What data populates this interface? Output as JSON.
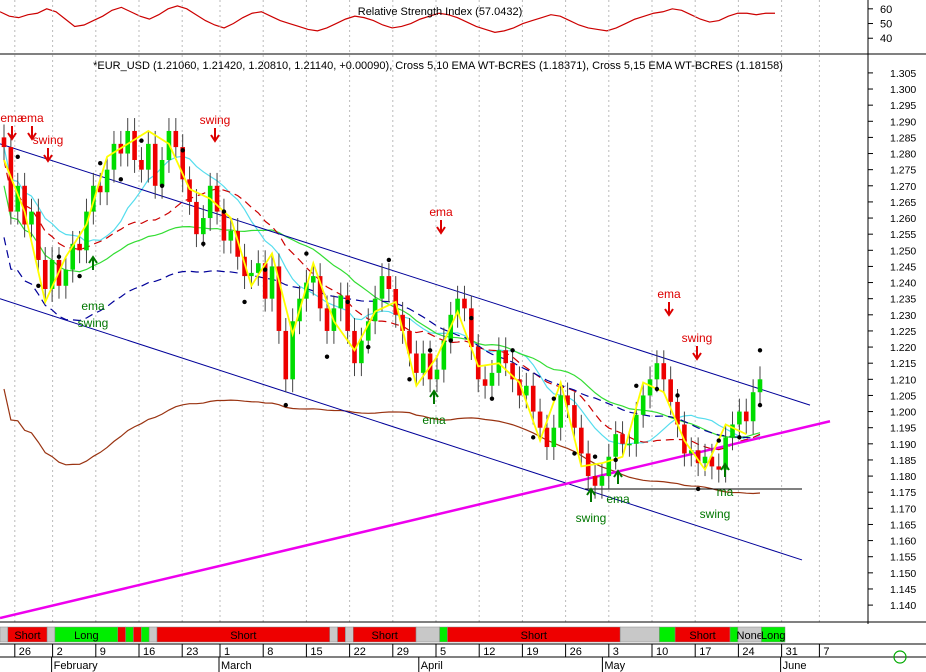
{
  "rsi": {
    "title": "Relative Strength Index (57.0432)",
    "ticks": [
      60,
      50,
      40
    ],
    "ylim": [
      32,
      66
    ],
    "values": [
      58,
      55,
      54,
      56,
      57,
      60,
      58,
      53,
      48,
      49,
      52,
      55,
      59,
      61,
      58,
      55,
      53,
      56,
      60,
      62,
      60,
      56,
      52,
      49,
      47,
      50,
      54,
      57,
      58,
      55,
      52,
      50,
      48,
      46,
      45,
      47,
      50,
      53,
      55,
      54,
      52,
      49,
      47,
      48,
      50,
      53,
      55,
      57,
      56,
      54,
      51,
      48,
      46,
      44,
      45,
      47,
      50,
      52,
      54,
      56,
      55,
      52,
      49,
      47,
      46,
      45,
      47,
      50,
      53,
      55,
      57,
      58,
      60,
      59,
      56,
      53,
      51,
      52,
      55,
      57,
      57,
      56,
      57,
      57
    ]
  },
  "main": {
    "title": "*EUR_USD (1.21060, 1.21420, 1.20810, 1.21140, +0.00090), Cross 5,10 EMA WT-BCRES (1.18371), Cross 5,15 EMA WT-BCRES (1.18158)",
    "y_ticks": [
      1.305,
      1.3,
      1.295,
      1.29,
      1.285,
      1.28,
      1.275,
      1.27,
      1.265,
      1.26,
      1.255,
      1.25,
      1.245,
      1.24,
      1.235,
      1.23,
      1.225,
      1.22,
      1.215,
      1.21,
      1.205,
      1.2,
      1.195,
      1.19,
      1.185,
      1.18,
      1.175,
      1.17,
      1.165,
      1.16,
      1.155,
      1.15,
      1.145,
      1.14
    ],
    "ylim": [
      1.136,
      1.309
    ]
  },
  "x_axis": {
    "day_labels": [
      {
        "label": "26",
        "i": 2
      },
      {
        "label": "2",
        "i": 9
      },
      {
        "label": "9",
        "i": 17
      },
      {
        "label": "16",
        "i": 25
      },
      {
        "label": "23",
        "i": 33
      },
      {
        "label": "1",
        "i": 40
      },
      {
        "label": "8",
        "i": 48
      },
      {
        "label": "15",
        "i": 56
      },
      {
        "label": "22",
        "i": 64
      },
      {
        "label": "29",
        "i": 72
      },
      {
        "label": "5",
        "i": 80
      },
      {
        "label": "12",
        "i": 88
      },
      {
        "label": "19",
        "i": 96
      },
      {
        "label": "26",
        "i": 104
      },
      {
        "label": "3",
        "i": 112
      },
      {
        "label": "10",
        "i": 120
      },
      {
        "label": "17",
        "i": 128
      },
      {
        "label": "24",
        "i": 136
      },
      {
        "label": "31",
        "i": 144
      },
      {
        "label": "7",
        "i": 151
      }
    ],
    "month_labels": [
      {
        "label": "February",
        "i": 9
      },
      {
        "label": "March",
        "i": 40
      },
      {
        "label": "April",
        "i": 77
      },
      {
        "label": "May",
        "i": 111
      },
      {
        "label": "June",
        "i": 144
      }
    ]
  },
  "signal_bar": [
    {
      "label": "",
      "state": "none",
      "from": 0,
      "to": 1
    },
    {
      "label": "Short",
      "state": "short",
      "from": 1,
      "to": 6
    },
    {
      "label": "",
      "state": "none",
      "from": 6,
      "to": 7
    },
    {
      "label": "Long",
      "state": "long",
      "from": 7,
      "to": 15
    },
    {
      "label": "",
      "state": "short",
      "from": 15,
      "to": 16
    },
    {
      "label": "",
      "state": "long",
      "from": 16,
      "to": 17
    },
    {
      "label": "",
      "state": "short",
      "from": 17,
      "to": 18
    },
    {
      "label": "",
      "state": "long",
      "from": 18,
      "to": 19
    },
    {
      "label": "",
      "state": "none",
      "from": 19,
      "to": 20
    },
    {
      "label": "Short",
      "state": "short",
      "from": 20,
      "to": 42
    },
    {
      "label": "",
      "state": "none",
      "from": 42,
      "to": 43
    },
    {
      "label": "",
      "state": "short",
      "from": 43,
      "to": 44
    },
    {
      "label": "",
      "state": "none",
      "from": 44,
      "to": 45
    },
    {
      "label": "Short",
      "state": "short",
      "from": 45,
      "to": 53
    },
    {
      "label": "",
      "state": "none",
      "from": 53,
      "to": 56
    },
    {
      "label": "",
      "state": "long",
      "from": 56,
      "to": 57
    },
    {
      "label": "Short",
      "state": "short",
      "from": 57,
      "to": 79
    },
    {
      "label": "",
      "state": "none",
      "from": 79,
      "to": 84
    },
    {
      "label": "",
      "state": "long",
      "from": 84,
      "to": 86
    },
    {
      "label": "Short",
      "state": "short",
      "from": 86,
      "to": 93
    },
    {
      "label": "",
      "state": "long",
      "from": 93,
      "to": 94
    },
    {
      "label": "None",
      "state": "none",
      "from": 94,
      "to": 97
    },
    {
      "label": "Long",
      "state": "long",
      "from": 97,
      "to": 100
    }
  ],
  "colors": {
    "up": "#00dd00",
    "down": "#ee0000",
    "zigzag": "#ffff00",
    "channel": "#000099",
    "magenta": "#ee00ee",
    "ema_cyan": "#55ddee",
    "ma_green": "#33dd33",
    "ma_red": "#cc0000",
    "ma_blue": "#000099",
    "ma_brown": "#993311",
    "sell": "#dd0000",
    "buy": "#007700",
    "short_bg": "#ee0000",
    "long_bg": "#00ee00",
    "none_bg": "#c8c8c8"
  },
  "chart_data": {
    "type": "candlestick",
    "symbol": "*EUR_USD",
    "last_bar": {
      "open": 1.2106,
      "high": 1.2142,
      "low": 1.2081,
      "close": 1.2114,
      "change": 0.0009
    },
    "indicators": {
      "cross_5_10_ema": 1.18371,
      "cross_5_15_ema": 1.18158,
      "rsi": 57.0432
    },
    "closes": [
      1.282,
      1.262,
      1.27,
      1.258,
      1.262,
      1.247,
      1.238,
      1.247,
      1.239,
      1.244,
      1.252,
      1.25,
      1.262,
      1.27,
      1.268,
      1.275,
      1.283,
      1.28,
      1.287,
      1.278,
      1.275,
      1.283,
      1.27,
      1.278,
      1.287,
      1.282,
      1.272,
      1.265,
      1.255,
      1.26,
      1.27,
      1.262,
      1.253,
      1.256,
      1.248,
      1.242,
      1.243,
      1.246,
      1.235,
      1.245,
      1.225,
      1.21,
      1.228,
      1.235,
      1.24,
      1.242,
      1.232,
      1.225,
      1.232,
      1.236,
      1.225,
      1.215,
      1.222,
      1.228,
      1.235,
      1.242,
      1.238,
      1.23,
      1.225,
      1.218,
      1.212,
      1.218,
      1.21,
      1.213,
      1.222,
      1.23,
      1.235,
      1.232,
      1.22,
      1.21,
      1.208,
      1.212,
      1.219,
      1.215,
      1.21,
      1.205,
      1.208,
      1.2,
      1.195,
      1.189,
      1.195,
      1.205,
      1.202,
      1.195,
      1.187,
      1.18,
      1.177,
      1.18,
      1.186,
      1.193,
      1.19,
      1.19,
      1.199,
      1.205,
      1.21,
      1.215,
      1.21,
      1.203,
      1.196,
      1.187,
      1.188,
      1.184,
      1.186,
      1.183,
      1.182,
      1.192,
      1.196,
      1.2,
      1.197,
      1.206,
      1.21
    ],
    "swing_highs": [
      1.289,
      1.291,
      1.27,
      1.25,
      1.251,
      1.245,
      1.24,
      1.235,
      1.229,
      1.226,
      1.214,
      1.205,
      1.197,
      1.2,
      1.219,
      1.221,
      1.197,
      1.21
    ],
    "swing_lows": [
      1.27,
      1.246,
      1.232,
      1.241,
      1.205,
      1.213,
      1.215,
      1.203,
      1.196,
      1.185,
      1.176,
      1.174,
      1.176,
      1.18,
      1.187,
      1.178,
      1.175
    ],
    "annotations": {
      "sell": [
        {
          "text": "ema",
          "i": 1,
          "arrow": true
        },
        {
          "text": "ema",
          "i": 5,
          "arrow": true
        },
        {
          "text": "swing",
          "i": 8,
          "arrow": true
        },
        {
          "text": "swing",
          "i": 34,
          "arrow": true
        },
        {
          "text": "ema",
          "i": 71,
          "arrow": true
        },
        {
          "text": "ema",
          "i": 107,
          "arrow": true
        },
        {
          "text": "swing",
          "i": 112,
          "arrow": true
        }
      ],
      "buy": [
        {
          "text": "ema",
          "i": 15
        },
        {
          "text": "swing",
          "i": 15
        },
        {
          "text": "ema",
          "i": 70
        },
        {
          "text": "swing",
          "i": 95
        },
        {
          "text": "ema",
          "i": 100
        },
        {
          "text": "ma",
          "i": 117
        },
        {
          "text": "swing",
          "i": 116
        }
      ]
    },
    "ylim": [
      1.136,
      1.309
    ],
    "xlabel": "",
    "ylabel": ""
  }
}
